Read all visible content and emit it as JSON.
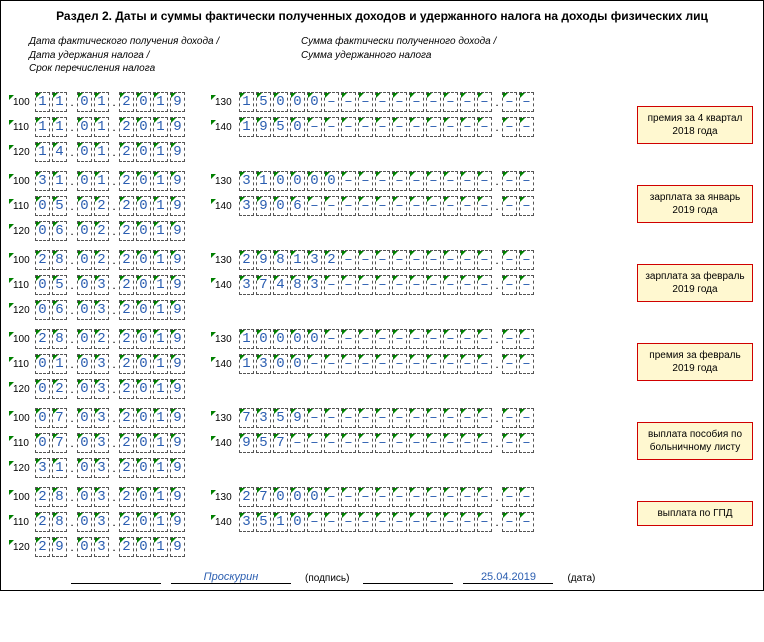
{
  "title": "Раздел 2. Даты и суммы фактически полученных доходов и удержанного налога на доходы физических лиц",
  "headerLeft": "Дата фактического получения дохода /\nДата удержания налога /\nСрок перечисления налога",
  "headerRight": "Сумма фактически полученного дохода /\nСумма удержанного налога",
  "styling": {
    "cell_border": "1px dashed #555",
    "cell_text_color": "#2a5db0",
    "note_bg": "#fff8d0",
    "note_border": "#d00000",
    "triangle_color": "#008000",
    "page_border": "#000"
  },
  "amount_int_len": 15,
  "amount_dec_len": 2,
  "blocks": [
    {
      "note": "премия за 4 квартал 2018 года",
      "r100_date": [
        "11",
        "01",
        "2019"
      ],
      "r110_date": [
        "11",
        "01",
        "2019"
      ],
      "r120_date": [
        "14",
        "01",
        "2019"
      ],
      "r130_amount": "15000",
      "r140_amount": "1950"
    },
    {
      "note": "зарплата за январь 2019 года",
      "r100_date": [
        "31",
        "01",
        "2019"
      ],
      "r110_date": [
        "05",
        "02",
        "2019"
      ],
      "r120_date": [
        "06",
        "02",
        "2019"
      ],
      "r130_amount": "310000",
      "r140_amount": "3906"
    },
    {
      "note": "зарплата за февраль 2019 года",
      "r100_date": [
        "28",
        "02",
        "2019"
      ],
      "r110_date": [
        "05",
        "03",
        "2019"
      ],
      "r120_date": [
        "06",
        "03",
        "2019"
      ],
      "r130_amount": "298132",
      "r140_amount": "37483"
    },
    {
      "note": "премия за февраль 2019 года",
      "r100_date": [
        "28",
        "02",
        "2019"
      ],
      "r110_date": [
        "01",
        "03",
        "2019"
      ],
      "r120_date": [
        "02",
        "03",
        "2019"
      ],
      "r130_amount": "10000",
      "r140_amount": "1300"
    },
    {
      "note": "выплата пособия по больничному листу",
      "r100_date": [
        "07",
        "03",
        "2019"
      ],
      "r110_date": [
        "07",
        "03",
        "2019"
      ],
      "r120_date": [
        "31",
        "03",
        "2019"
      ],
      "r130_amount": "7359",
      "r140_amount": "957"
    },
    {
      "note": "выплата по ГПД",
      "r100_date": [
        "28",
        "03",
        "2019"
      ],
      "r110_date": [
        "28",
        "03",
        "2019"
      ],
      "r120_date": [
        "29",
        "03",
        "2019"
      ],
      "r130_amount": "27000",
      "r140_amount": "3510"
    }
  ],
  "footer": {
    "sig_name": "Проскурин",
    "label_sig": "(подпись)",
    "date_value": "25.04.2019",
    "label_date": "(дата)"
  }
}
